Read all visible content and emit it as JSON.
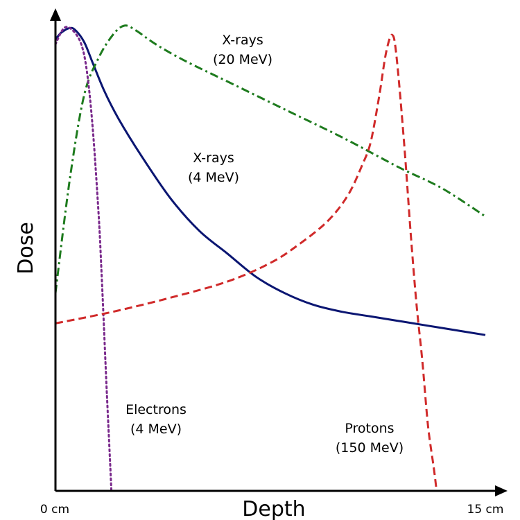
{
  "chart_data": {
    "type": "line",
    "title": "",
    "xlabel": "Depth",
    "ylabel": "Dose",
    "xlim": [
      0,
      15
    ],
    "ylim": [
      0,
      100
    ],
    "x_ticks": [
      "0 cm",
      "15 cm"
    ],
    "grid": false,
    "legend": "none",
    "series": [
      {
        "key": "xray4",
        "label_lines": [
          "X-rays",
          "(4 MeV)"
        ],
        "color": "#0b1672",
        "dash": "solid",
        "points": [
          [
            0,
            97
          ],
          [
            0.2,
            98.5
          ],
          [
            0.5,
            99.5
          ],
          [
            0.7,
            99
          ],
          [
            1,
            96.5
          ],
          [
            1.3,
            92
          ],
          [
            1.7,
            86
          ],
          [
            2.2,
            80
          ],
          [
            3,
            72
          ],
          [
            4,
            63
          ],
          [
            5,
            56
          ],
          [
            6,
            51
          ],
          [
            7,
            46
          ],
          [
            8,
            42.5
          ],
          [
            9,
            40
          ],
          [
            10,
            38.5
          ],
          [
            11,
            37.5
          ],
          [
            12,
            36.5
          ],
          [
            13,
            35.5
          ],
          [
            14,
            34.5
          ],
          [
            15,
            33.5
          ]
        ]
      },
      {
        "key": "xray20",
        "label_lines": [
          "X-rays",
          "(20 MeV)"
        ],
        "color": "#1e7b1e",
        "dash": "dashdot",
        "points": [
          [
            0,
            42.5
          ],
          [
            0.5,
            67
          ],
          [
            1,
            85
          ],
          [
            1.5,
            93
          ],
          [
            2,
            98
          ],
          [
            2.4,
            100
          ],
          [
            2.8,
            99
          ],
          [
            3.5,
            96
          ],
          [
            4.5,
            92.5
          ],
          [
            6,
            88
          ],
          [
            8,
            82
          ],
          [
            10,
            76
          ],
          [
            12,
            69.5
          ],
          [
            13.5,
            65
          ],
          [
            15,
            59
          ]
        ]
      },
      {
        "key": "electrons",
        "label_lines": [
          "Electrons",
          "(4 MeV)"
        ],
        "color": "#7a2a8c",
        "dash": "dotted",
        "points": [
          [
            0,
            96
          ],
          [
            0.3,
            99.5
          ],
          [
            0.6,
            99
          ],
          [
            0.9,
            96
          ],
          [
            1.1,
            90
          ],
          [
            1.3,
            78
          ],
          [
            1.5,
            60
          ],
          [
            1.6,
            48
          ],
          [
            1.7,
            34
          ],
          [
            1.8,
            20
          ],
          [
            1.9,
            7
          ],
          [
            1.95,
            0
          ]
        ]
      },
      {
        "key": "protons",
        "label_lines": [
          "Protons",
          "(150 MeV)"
        ],
        "color": "#d02a2a",
        "dash": "dashed",
        "points": [
          [
            0,
            36
          ],
          [
            2,
            38.5
          ],
          [
            4,
            41.5
          ],
          [
            6,
            45
          ],
          [
            7.5,
            49
          ],
          [
            8.5,
            53
          ],
          [
            9.5,
            58
          ],
          [
            10.2,
            63.5
          ],
          [
            10.7,
            70
          ],
          [
            11,
            75
          ],
          [
            11.3,
            85
          ],
          [
            11.5,
            93
          ],
          [
            11.65,
            97
          ],
          [
            11.75,
            98
          ],
          [
            11.85,
            96
          ],
          [
            12,
            87
          ],
          [
            12.2,
            72
          ],
          [
            12.4,
            55
          ],
          [
            12.6,
            40
          ],
          [
            12.8,
            28
          ],
          [
            13,
            14
          ],
          [
            13.2,
            5
          ],
          [
            13.3,
            0
          ]
        ]
      }
    ]
  }
}
